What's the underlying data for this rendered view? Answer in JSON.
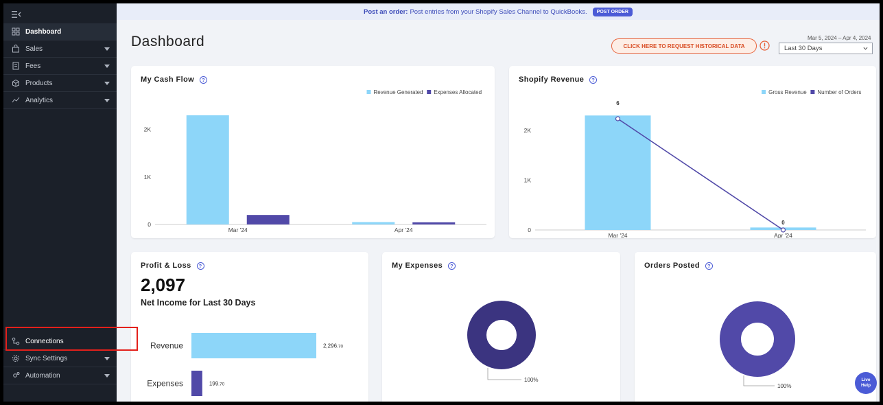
{
  "banner": {
    "prefix": "Post an order:",
    "text": "Post entries from your Shopify Sales Channel to QuickBooks.",
    "button": "POST ORDER"
  },
  "sidebar": {
    "items": [
      {
        "label": "Dashboard",
        "icon": "grid-icon",
        "caret": false
      },
      {
        "label": "Sales",
        "icon": "bag-icon",
        "caret": true
      },
      {
        "label": "Fees",
        "icon": "receipt-icon",
        "caret": true
      },
      {
        "label": "Products",
        "icon": "box-icon",
        "caret": true
      },
      {
        "label": "Analytics",
        "icon": "trend-icon",
        "caret": true
      }
    ],
    "bottom_items": [
      {
        "label": "Connections",
        "icon": "connections-icon",
        "caret": false
      },
      {
        "label": "Sync Settings",
        "icon": "gear-icon",
        "caret": true
      },
      {
        "label": "Automation",
        "icon": "automation-icon",
        "caret": true
      }
    ]
  },
  "header": {
    "title": "Dashboard",
    "date_range": "Mar 5, 2024 – Apr 4, 2024",
    "request_button": "CLICK HERE TO REQUEST HISTORICAL DATA",
    "period_select": "Last 30 Days"
  },
  "cards": {
    "cash_flow": {
      "title": "My Cash Flow"
    },
    "shopify_revenue": {
      "title": "Shopify Revenue"
    },
    "profit_loss": {
      "title": "Profit & Loss",
      "value": "2,097",
      "subtitle": "Net Income for Last 30 Days"
    },
    "expenses": {
      "title": "My Expenses"
    },
    "orders": {
      "title": "Orders Posted"
    }
  },
  "live_help": {
    "line1": "Live",
    "line2": "Help"
  },
  "colors": {
    "light_blue": "#8dd6f9",
    "purple": "#5149a8",
    "dark_purple": "#3b3480",
    "accent": "#4b5bd6"
  },
  "chart_data": [
    {
      "type": "bar",
      "title": "My Cash Flow",
      "categories": [
        "Mar '24",
        "Apr '24"
      ],
      "yticks": [
        "0",
        "1K",
        "2K"
      ],
      "ylim": [
        0,
        2400
      ],
      "legend": "top-right",
      "series": [
        {
          "name": "Revenue Generated",
          "color": "#8dd6f9",
          "values": [
            2300,
            50
          ]
        },
        {
          "name": "Expenses Allocated",
          "color": "#5149a8",
          "values": [
            200,
            45
          ]
        }
      ]
    },
    {
      "type": "bar",
      "title": "Shopify Revenue",
      "categories": [
        "Mar '24",
        "Apr '24"
      ],
      "yticks": [
        "0",
        "1K",
        "2K"
      ],
      "ylim": [
        0,
        2400
      ],
      "legend": "top-right",
      "series": [
        {
          "name": "Gross Revenue",
          "color": "#8dd6f9",
          "values": [
            2300,
            50
          ]
        },
        {
          "name": "Number of Orders",
          "color": "#5149a8",
          "type": "line",
          "values": [
            6,
            0
          ],
          "labels": [
            "6",
            "0"
          ]
        }
      ]
    },
    {
      "type": "bar",
      "title": "Profit & Loss",
      "orientation": "horizontal",
      "categories": [
        "Revenue",
        "Expenses"
      ],
      "values": [
        2296.7,
        199.7
      ],
      "value_labels": [
        [
          "2,296",
          ".70"
        ],
        [
          "199",
          ".70"
        ]
      ],
      "colors": [
        "#8dd6f9",
        "#5149a8"
      ]
    },
    {
      "type": "pie",
      "title": "My Expenses",
      "slices": [
        {
          "value": 100,
          "label": "100%",
          "color": "#3b3480"
        }
      ]
    },
    {
      "type": "pie",
      "title": "Orders Posted",
      "slices": [
        {
          "value": 100,
          "label": "100%",
          "color": "#5149a8"
        }
      ]
    }
  ]
}
